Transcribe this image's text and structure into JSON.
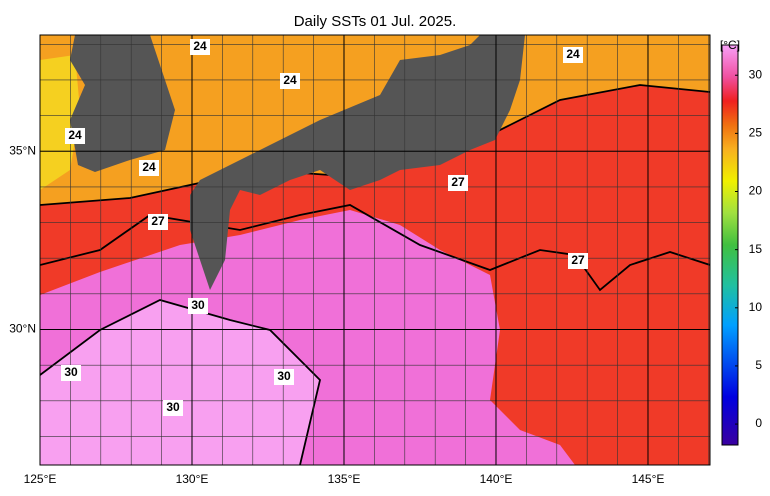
{
  "title": "Daily SSTs 01 Jul. 2025.",
  "unit": "[°C]",
  "lon_range": [
    125,
    147.04
  ],
  "lat_range": [
    26.2,
    38.26
  ],
  "lon_ticks": [
    {
      "value": 125,
      "label": "125°E"
    },
    {
      "value": 130,
      "label": "130°E"
    },
    {
      "value": 135,
      "label": "135°E"
    },
    {
      "value": 140,
      "label": "140°E"
    },
    {
      "value": 145,
      "label": "145°E"
    }
  ],
  "lat_ticks": [
    {
      "value": 30,
      "label": "30°N"
    },
    {
      "value": 35,
      "label": "35°N"
    }
  ],
  "colorbar_range": [
    -1.8,
    32.6
  ],
  "colorbar_ticks": [
    0,
    5,
    10,
    15,
    20,
    25,
    30
  ],
  "contour_labels": [
    24,
    24,
    24,
    24,
    24,
    27,
    27,
    27,
    30,
    30,
    30,
    30
  ]
}
